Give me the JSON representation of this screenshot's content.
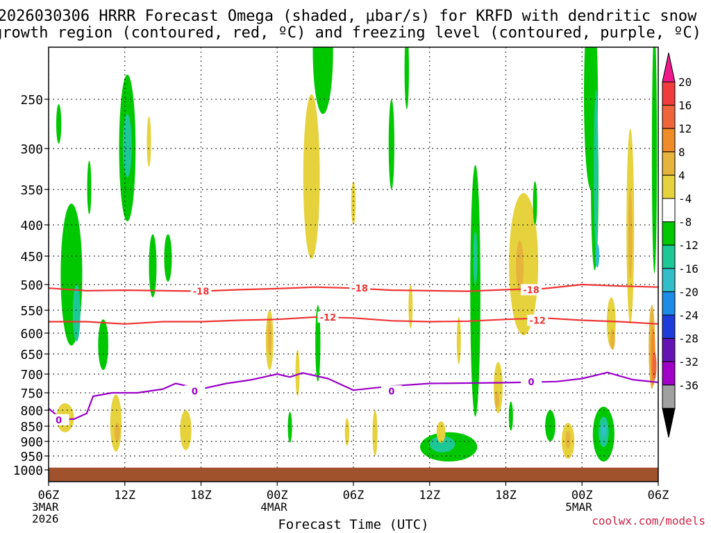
{
  "chart_data": {
    "type": "contour",
    "title_line1": "2026030306 HRRR Forecast Omega (shaded, μbar/s) for KRFD with dendritic snow",
    "title_line2": "growth region (contoured, red, ºC) and freezing level (contoured, purple, ºC)",
    "xlabel": "Forecast Time (UTC)",
    "x_ticks": [
      {
        "hour": 0,
        "label": "06Z",
        "sub1": "3MAR",
        "sub2": "2026"
      },
      {
        "hour": 6,
        "label": "12Z",
        "sub1": "",
        "sub2": ""
      },
      {
        "hour": 12,
        "label": "18Z",
        "sub1": "",
        "sub2": ""
      },
      {
        "hour": 18,
        "label": "00Z",
        "sub1": "4MAR",
        "sub2": ""
      },
      {
        "hour": 24,
        "label": "06Z",
        "sub1": "",
        "sub2": ""
      },
      {
        "hour": 30,
        "label": "12Z",
        "sub1": "",
        "sub2": ""
      },
      {
        "hour": 36,
        "label": "18Z",
        "sub1": "",
        "sub2": ""
      },
      {
        "hour": 42,
        "label": "00Z",
        "sub1": "5MAR",
        "sub2": ""
      },
      {
        "hour": 48,
        "label": "06Z",
        "sub1": "",
        "sub2": ""
      }
    ],
    "y_ticks": [
      250,
      300,
      350,
      400,
      450,
      500,
      550,
      600,
      650,
      700,
      750,
      800,
      850,
      900,
      950,
      1000
    ],
    "y_range_hpa": [
      200,
      1030
    ],
    "x_range_hours": [
      0,
      48
    ],
    "colorbar": {
      "labels": [
        "20",
        "16",
        "12",
        "8",
        "4",
        "-4",
        "-8",
        "-12",
        "-16",
        "-20",
        "-24",
        "-28",
        "-32",
        "-36"
      ],
      "colors": [
        "#ee1a8c",
        "#f03c3c",
        "#f0643c",
        "#f08c28",
        "#e6b43c",
        "#e6d23c",
        "#ffffff",
        "#00c800",
        "#1ec896",
        "#32bec8",
        "#1e8ce6",
        "#1e3cdc",
        "#6414b4",
        "#a000c8",
        "#a0a0a0",
        "#000000"
      ]
    },
    "dgz_isotherms": [
      {
        "temp": "-18",
        "points": [
          [
            0,
            507
          ],
          [
            3,
            512
          ],
          [
            6,
            511
          ],
          [
            9,
            512
          ],
          [
            12,
            513
          ],
          [
            15,
            510
          ],
          [
            18,
            508
          ],
          [
            21,
            505
          ],
          [
            24,
            507
          ],
          [
            27,
            511
          ],
          [
            30,
            512
          ],
          [
            33,
            513
          ],
          [
            36,
            510
          ],
          [
            39,
            508
          ],
          [
            42,
            500
          ],
          [
            45,
            503
          ],
          [
            48,
            505
          ]
        ],
        "labels": [
          [
            12,
            513
          ],
          [
            24.5,
            507
          ],
          [
            38,
            510
          ]
        ]
      },
      {
        "temp": "-12",
        "points": [
          [
            0,
            575
          ],
          [
            3,
            575
          ],
          [
            6,
            580
          ],
          [
            9,
            575
          ],
          [
            12,
            575
          ],
          [
            15,
            572
          ],
          [
            18,
            570
          ],
          [
            21,
            565
          ],
          [
            24,
            567
          ],
          [
            27,
            573
          ],
          [
            30,
            575
          ],
          [
            33,
            574
          ],
          [
            36,
            570
          ],
          [
            39,
            567
          ],
          [
            42,
            572
          ],
          [
            45,
            575
          ],
          [
            48,
            580
          ]
        ],
        "labels": [
          [
            22,
            565
          ],
          [
            38.5,
            572
          ]
        ]
      }
    ],
    "freezing_level": {
      "temp": "0",
      "points": [
        [
          0,
          795
        ],
        [
          1,
          828
        ],
        [
          2,
          828
        ],
        [
          3,
          810
        ],
        [
          3.5,
          760
        ],
        [
          5,
          750
        ],
        [
          7,
          750
        ],
        [
          9,
          740
        ],
        [
          10,
          725
        ],
        [
          12,
          740
        ],
        [
          14,
          725
        ],
        [
          16,
          715
        ],
        [
          18,
          700
        ],
        [
          19,
          708
        ],
        [
          20,
          697
        ],
        [
          22,
          712
        ],
        [
          24,
          743
        ],
        [
          27,
          732
        ],
        [
          30,
          725
        ],
        [
          36,
          723
        ],
        [
          40,
          720
        ],
        [
          42,
          712
        ],
        [
          44,
          696
        ],
        [
          46,
          715
        ],
        [
          48,
          722
        ]
      ],
      "labels": [
        [
          0.8,
          830
        ],
        [
          11.5,
          745
        ],
        [
          27,
          745
        ],
        [
          38,
          720
        ]
      ]
    },
    "omega_regions": [
      {
        "level": "-8",
        "t": 0.8,
        "p": 275,
        "w": 0.4,
        "h": 40
      },
      {
        "level": "-8",
        "t": 1.8,
        "p": 500,
        "w": 1.7,
        "h": 260
      },
      {
        "level": "-12",
        "t": 2.2,
        "p": 560,
        "w": 0.6,
        "h": 120
      },
      {
        "level": "-8",
        "t": 3.2,
        "p": 350,
        "w": 0.25,
        "h": 70
      },
      {
        "level": "-8",
        "t": 6.2,
        "p": 310,
        "w": 1.3,
        "h": 170
      },
      {
        "level": "-12",
        "t": 6.2,
        "p": 300,
        "w": 0.7,
        "h": 70
      },
      {
        "level": "4",
        "t": 7.9,
        "p": 295,
        "w": 0.3,
        "h": 55
      },
      {
        "level": "-8",
        "t": 4.3,
        "p": 630,
        "w": 0.8,
        "h": 120
      },
      {
        "level": "-8",
        "t": 8.2,
        "p": 470,
        "w": 0.6,
        "h": 110
      },
      {
        "level": "-8",
        "t": 9.4,
        "p": 455,
        "w": 0.6,
        "h": 80
      },
      {
        "level": "4",
        "t": 5.3,
        "p": 845,
        "w": 0.9,
        "h": 180
      },
      {
        "level": "8",
        "t": 5.4,
        "p": 870,
        "w": 0.45,
        "h": 60
      },
      {
        "level": "4",
        "t": 1.3,
        "p": 825,
        "w": 1.4,
        "h": 90
      },
      {
        "level": "4",
        "t": 10.8,
        "p": 865,
        "w": 0.9,
        "h": 130
      },
      {
        "level": "4",
        "t": 17.4,
        "p": 620,
        "w": 0.6,
        "h": 140
      },
      {
        "level": "8",
        "t": 17.4,
        "p": 610,
        "w": 0.3,
        "h": 80
      },
      {
        "level": "4",
        "t": 20.7,
        "p": 350,
        "w": 1.3,
        "h": 210
      },
      {
        "level": "-8",
        "t": 21.6,
        "p": 200,
        "w": 1.6,
        "h": 130
      },
      {
        "level": "-8",
        "t": 21.2,
        "p": 630,
        "w": 0.4,
        "h": 180
      },
      {
        "level": "4",
        "t": 19.6,
        "p": 700,
        "w": 0.25,
        "h": 120
      },
      {
        "level": "4",
        "t": 24,
        "p": 370,
        "w": 0.35,
        "h": 60
      },
      {
        "level": "-8",
        "t": 19,
        "p": 855,
        "w": 0.3,
        "h": 100
      },
      {
        "level": "4",
        "t": 23.5,
        "p": 870,
        "w": 0.35,
        "h": 90
      },
      {
        "level": "4",
        "t": 25.7,
        "p": 875,
        "w": 0.4,
        "h": 150
      },
      {
        "level": "-8",
        "t": 27,
        "p": 300,
        "w": 0.45,
        "h": 100
      },
      {
        "level": "-8",
        "t": 28.2,
        "p": 220,
        "w": 0.35,
        "h": 80
      },
      {
        "level": "-8",
        "t": 31.5,
        "p": 920,
        "w": 4.5,
        "h": 100
      },
      {
        "level": "-12",
        "t": 31,
        "p": 910,
        "w": 2.0,
        "h": 55
      },
      {
        "level": "4",
        "t": 30.9,
        "p": 870,
        "w": 0.7,
        "h": 70
      },
      {
        "level": "4",
        "t": 28.5,
        "p": 545,
        "w": 0.25,
        "h": 90
      },
      {
        "level": "4",
        "t": 32.3,
        "p": 620,
        "w": 0.3,
        "h": 110
      },
      {
        "level": "-8",
        "t": 33.6,
        "p": 570,
        "w": 0.8,
        "h": 500
      },
      {
        "level": "-12",
        "t": 33.6,
        "p": 455,
        "w": 0.3,
        "h": 90
      },
      {
        "level": "4",
        "t": 35.4,
        "p": 740,
        "w": 0.7,
        "h": 140
      },
      {
        "level": "8",
        "t": 35.3,
        "p": 770,
        "w": 0.3,
        "h": 50
      },
      {
        "level": "-8",
        "t": 36.4,
        "p": 820,
        "w": 0.3,
        "h": 90
      },
      {
        "level": "4",
        "t": 37.4,
        "p": 480,
        "w": 2.3,
        "h": 250
      },
      {
        "level": "8",
        "t": 37.1,
        "p": 470,
        "w": 0.6,
        "h": 90
      },
      {
        "level": "-8",
        "t": 38.3,
        "p": 370,
        "w": 0.3,
        "h": 60
      },
      {
        "level": "-8",
        "t": 39.5,
        "p": 850,
        "w": 0.8,
        "h": 100
      },
      {
        "level": "4",
        "t": 40.9,
        "p": 900,
        "w": 1.0,
        "h": 120
      },
      {
        "level": "8",
        "t": 40.9,
        "p": 895,
        "w": 0.4,
        "h": 60
      },
      {
        "level": "-8",
        "t": 42.7,
        "p": 250,
        "w": 1.1,
        "h": 200
      },
      {
        "level": "-8",
        "t": 43,
        "p": 360,
        "w": 0.6,
        "h": 230
      },
      {
        "level": "-12",
        "t": 43.1,
        "p": 340,
        "w": 0.35,
        "h": 200
      },
      {
        "level": "-16",
        "t": 43.2,
        "p": 450,
        "w": 0.15,
        "h": 40
      },
      {
        "level": "-8",
        "t": 43.7,
        "p": 880,
        "w": 1.7,
        "h": 180
      },
      {
        "level": "-12",
        "t": 43.7,
        "p": 870,
        "w": 0.8,
        "h": 100
      },
      {
        "level": "-16",
        "t": 43.7,
        "p": 865,
        "w": 0.4,
        "h": 40
      },
      {
        "level": "4",
        "t": 44.3,
        "p": 580,
        "w": 0.7,
        "h": 110
      },
      {
        "level": "8",
        "t": 44.4,
        "p": 615,
        "w": 0.4,
        "h": 50
      },
      {
        "level": "4",
        "t": 45.8,
        "p": 430,
        "w": 0.6,
        "h": 300
      },
      {
        "level": "8",
        "t": 45.8,
        "p": 420,
        "w": 0.3,
        "h": 140
      },
      {
        "level": "-8",
        "t": 47.7,
        "p": 330,
        "w": 0.4,
        "h": 300
      },
      {
        "level": "8",
        "t": 47.5,
        "p": 640,
        "w": 0.5,
        "h": 200
      },
      {
        "level": "12",
        "t": 47.6,
        "p": 660,
        "w": 0.35,
        "h": 140
      },
      {
        "level": "16",
        "t": 47.7,
        "p": 680,
        "w": 0.2,
        "h": 70
      }
    ],
    "ground_hpa": 992
  },
  "credit": "coolwx.com/models"
}
